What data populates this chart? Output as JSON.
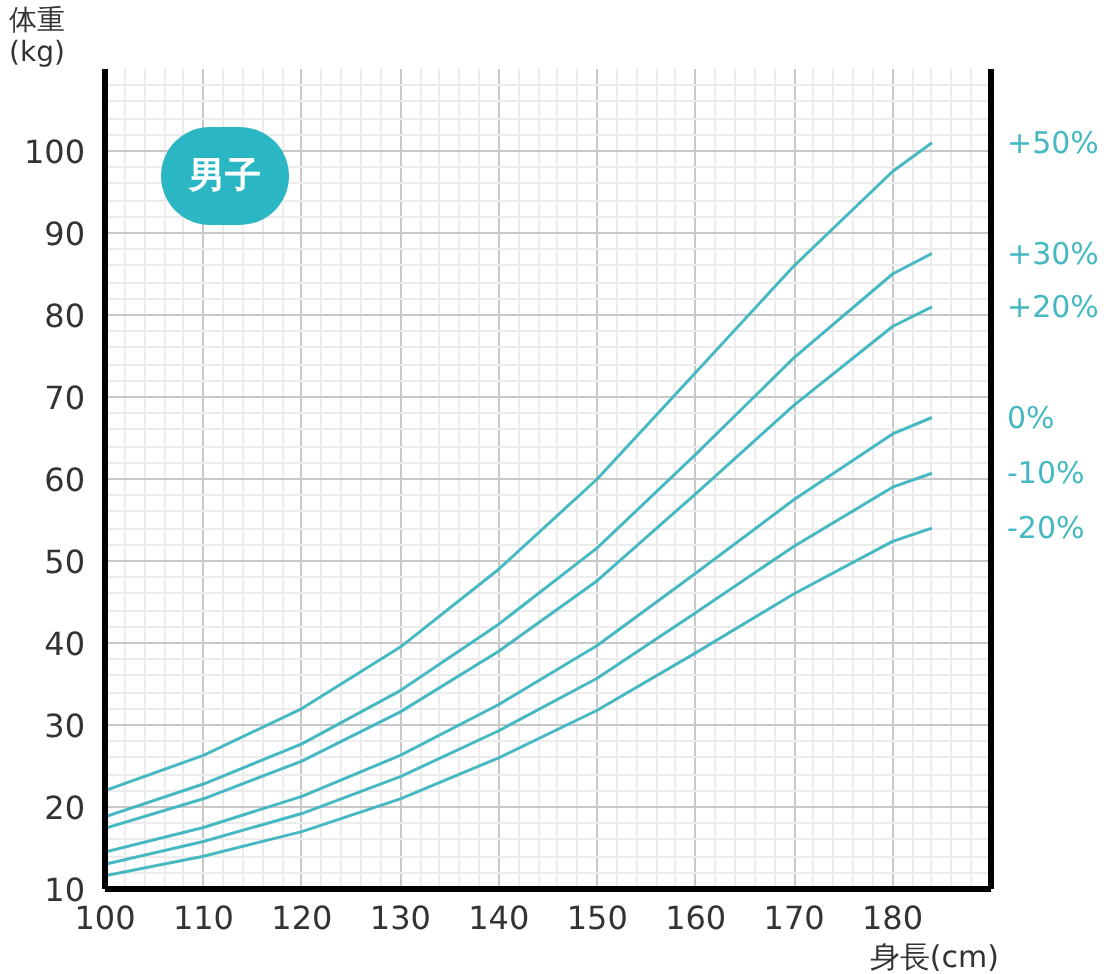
{
  "chart_data": {
    "type": "line",
    "xlabel": "身長(cm)",
    "ylabel": "体重\n(kg)",
    "annotations": [
      "男子"
    ],
    "x": [
      100,
      110,
      120,
      130,
      140,
      150,
      160,
      170,
      180,
      184
    ],
    "xlim": [
      100,
      190
    ],
    "xticks": [
      100,
      110,
      120,
      130,
      140,
      150,
      160,
      170,
      180
    ],
    "ylim": [
      10,
      110
    ],
    "yticks": [
      10,
      20,
      30,
      40,
      50,
      60,
      70,
      80,
      90,
      100
    ],
    "grid": true,
    "marker": "none",
    "line_style": "solid",
    "series": [
      {
        "name": "+50%",
        "color": "#45b8c2",
        "values": [
          22,
          26.3,
          32,
          39.5,
          49,
          60,
          73,
          86,
          97.5,
          101
        ]
      },
      {
        "name": "+30%",
        "color": "#45b8c2",
        "values": [
          18.8,
          22.8,
          27.7,
          34.2,
          42.3,
          51.6,
          63,
          74.8,
          85,
          87.5
        ]
      },
      {
        "name": "+20%",
        "color": "#45b8c2",
        "values": [
          17.4,
          21,
          25.6,
          31.6,
          39,
          47.6,
          58.2,
          69,
          78.6,
          81
        ]
      },
      {
        "name": "0%",
        "color": "#45b8c2",
        "values": [
          14.5,
          17.5,
          21.3,
          26.3,
          32.5,
          39.7,
          48.5,
          57.5,
          65.5,
          67.5
        ]
      },
      {
        "name": "-10%",
        "color": "#45b8c2",
        "values": [
          13,
          15.8,
          19.2,
          23.7,
          29.3,
          35.7,
          43.7,
          51.8,
          59,
          60.7
        ]
      },
      {
        "name": "-20%",
        "color": "#45b8c2",
        "values": [
          11.6,
          14,
          17,
          21,
          26,
          31.8,
          38.8,
          46,
          52.4,
          54
        ]
      }
    ]
  }
}
